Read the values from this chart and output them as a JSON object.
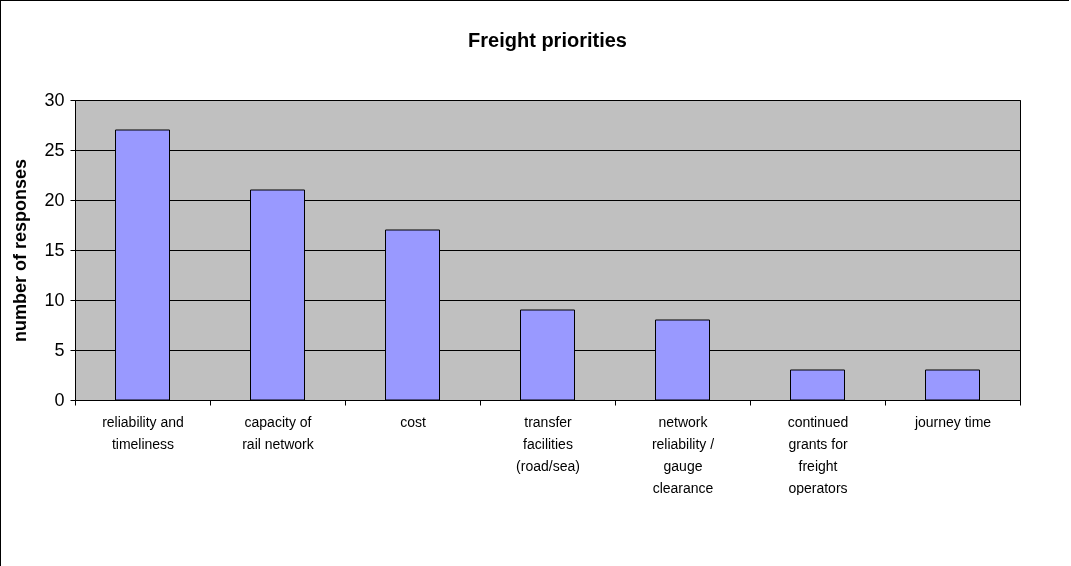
{
  "chart_data": {
    "type": "bar",
    "title": "Freight priorities",
    "ylabel": "number of responses",
    "categories": [
      "reliability and timeliness",
      "capacity of rail network",
      "cost",
      "transfer facilities (road/sea)",
      "network reliability / gauge clearance",
      "continued grants for freight operators",
      "journey time"
    ],
    "values": [
      27,
      21,
      17,
      9,
      8,
      3,
      3
    ],
    "color": "#9999ff",
    "ylim": [
      0,
      30
    ],
    "yticks": [
      0,
      5,
      10,
      15,
      20,
      25,
      30
    ],
    "grid": "y"
  }
}
